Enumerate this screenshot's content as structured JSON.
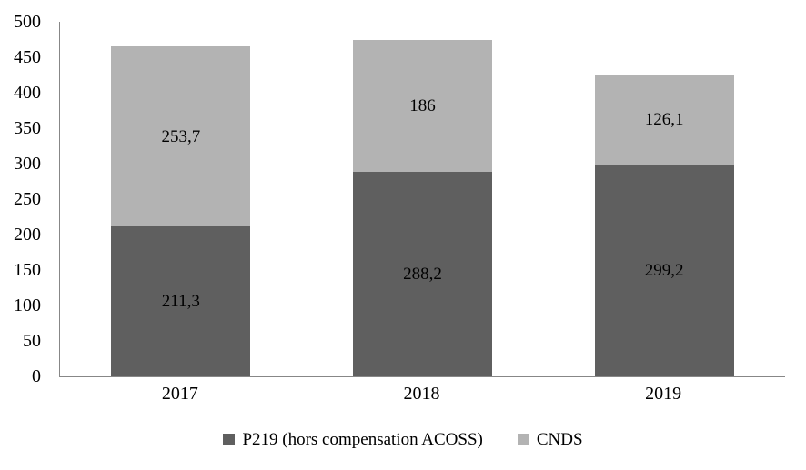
{
  "chart_data": {
    "type": "bar",
    "stacked": true,
    "title": "",
    "xlabel": "",
    "ylabel": "",
    "categories": [
      "2017",
      "2018",
      "2019"
    ],
    "series": [
      {
        "name": "P219 (hors compensation ACOSS)",
        "color": "#5F5F5F",
        "values": [
          211.3,
          288.2,
          299.2
        ],
        "labels": [
          "211,3",
          "288,2",
          "299,2"
        ]
      },
      {
        "name": "CNDS",
        "color": "#B3B3B3",
        "values": [
          253.7,
          186,
          126.1
        ],
        "labels": [
          "253,7",
          "186",
          "126,1"
        ]
      }
    ],
    "totals": [
      465,
      474.2,
      425.3
    ],
    "ylim": [
      0,
      500
    ],
    "y_ticks": [
      0,
      50,
      100,
      150,
      200,
      250,
      300,
      350,
      400,
      450,
      500
    ],
    "grid": false,
    "legend_position": "bottom",
    "axis_color": "#878787",
    "label_color": "#000000",
    "background_color": "#FFFFFF"
  }
}
